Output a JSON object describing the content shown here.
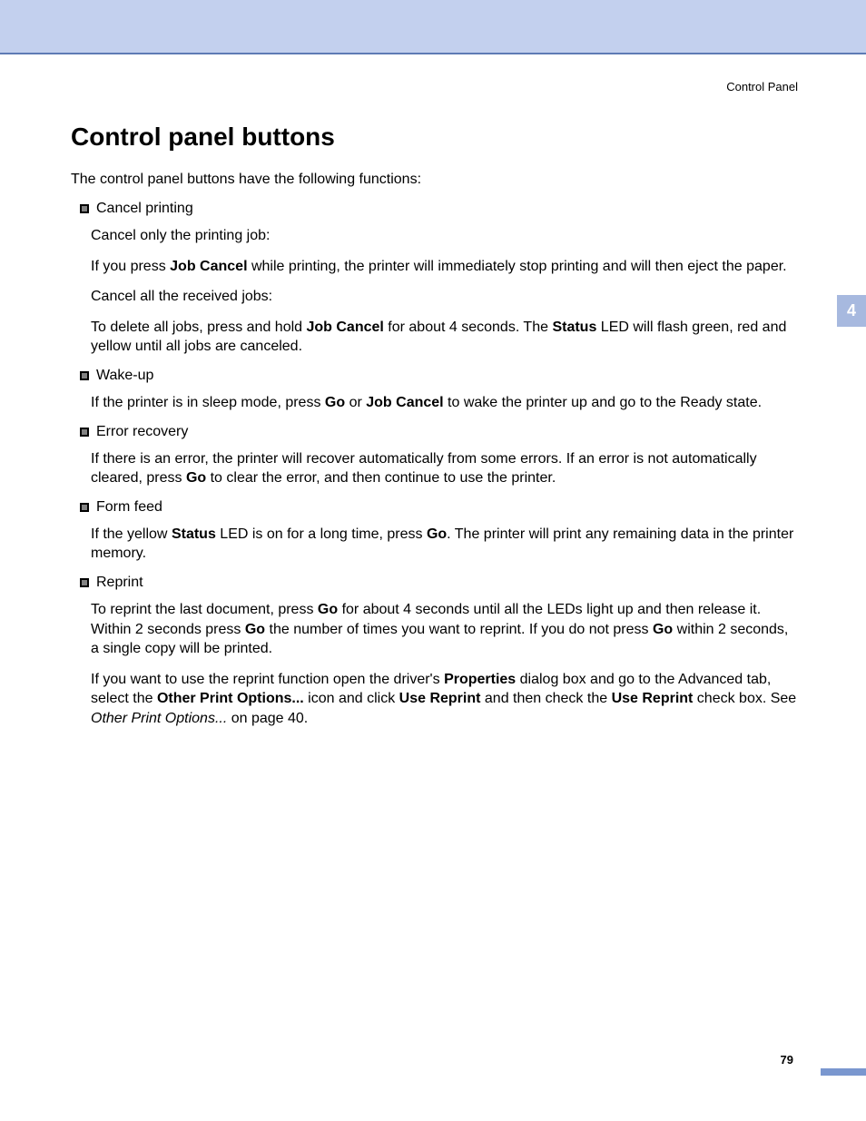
{
  "colors": {
    "top_band": "#c3d0ee",
    "top_rule": "#5e7bb5",
    "chapter_tab_bg": "#a7b9df",
    "chapter_tab_fg": "#ffffff",
    "page_tab": "#7a97cf",
    "bullet_fill": "#838383",
    "text": "#000000",
    "background": "#ffffff"
  },
  "header_right": "Control Panel",
  "title": "Control panel buttons",
  "intro": "The control panel buttons have the following functions:",
  "chapter_number": "4",
  "page_number": "79",
  "sections": [
    {
      "heading": "Cancel printing",
      "paragraphs": [
        [
          {
            "t": "Cancel only the printing job:"
          }
        ],
        [
          {
            "t": "If you press "
          },
          {
            "t": "Job Cancel",
            "b": true
          },
          {
            "t": " while printing, the printer will immediately stop printing and will then eject the paper."
          }
        ],
        [
          {
            "t": "Cancel all the received jobs:"
          }
        ],
        [
          {
            "t": "To delete all jobs, press and hold "
          },
          {
            "t": "Job Cancel",
            "b": true
          },
          {
            "t": " for about 4 seconds. The "
          },
          {
            "t": "Status",
            "b": true
          },
          {
            "t": " LED will flash green, red and yellow until all jobs are canceled."
          }
        ]
      ]
    },
    {
      "heading": "Wake-up",
      "paragraphs": [
        [
          {
            "t": "If the printer is in sleep mode, press "
          },
          {
            "t": "Go",
            "b": true
          },
          {
            "t": " or "
          },
          {
            "t": "Job Cancel",
            "b": true
          },
          {
            "t": " to wake the printer up and go to the Ready state."
          }
        ]
      ]
    },
    {
      "heading": "Error recovery",
      "paragraphs": [
        [
          {
            "t": "If there is an error, the printer will recover automatically from some errors. If an error is not automatically cleared, press "
          },
          {
            "t": "Go",
            "b": true
          },
          {
            "t": " to clear the error, and then continue to use the printer."
          }
        ]
      ]
    },
    {
      "heading": "Form feed",
      "paragraphs": [
        [
          {
            "t": "If the yellow "
          },
          {
            "t": "Status",
            "b": true
          },
          {
            "t": " LED is on for a long time, press "
          },
          {
            "t": "Go",
            "b": true
          },
          {
            "t": ". The printer will print any remaining data in the printer memory."
          }
        ]
      ]
    },
    {
      "heading": "Reprint",
      "paragraphs": [
        [
          {
            "t": "To reprint the last document, press "
          },
          {
            "t": "Go",
            "b": true
          },
          {
            "t": " for about 4 seconds until all the LEDs light up and then release it. Within 2 seconds press "
          },
          {
            "t": "Go",
            "b": true
          },
          {
            "t": " the number of times you want to reprint. If you do not press "
          },
          {
            "t": "Go",
            "b": true
          },
          {
            "t": " within 2 seconds, a single copy will be printed."
          }
        ],
        [
          {
            "t": "If you want to use the reprint function open the driver's "
          },
          {
            "t": "Properties",
            "b": true
          },
          {
            "t": " dialog box and go to the Advanced tab, select the "
          },
          {
            "t": "Other Print Options...",
            "b": true
          },
          {
            "t": " icon and click "
          },
          {
            "t": "Use Reprint",
            "b": true
          },
          {
            "t": " and then check the "
          },
          {
            "t": "Use Reprint",
            "b": true
          },
          {
            "t": " check box. See "
          },
          {
            "t": "Other Print Options...",
            "i": true
          },
          {
            "t": " on page 40."
          }
        ]
      ]
    }
  ]
}
